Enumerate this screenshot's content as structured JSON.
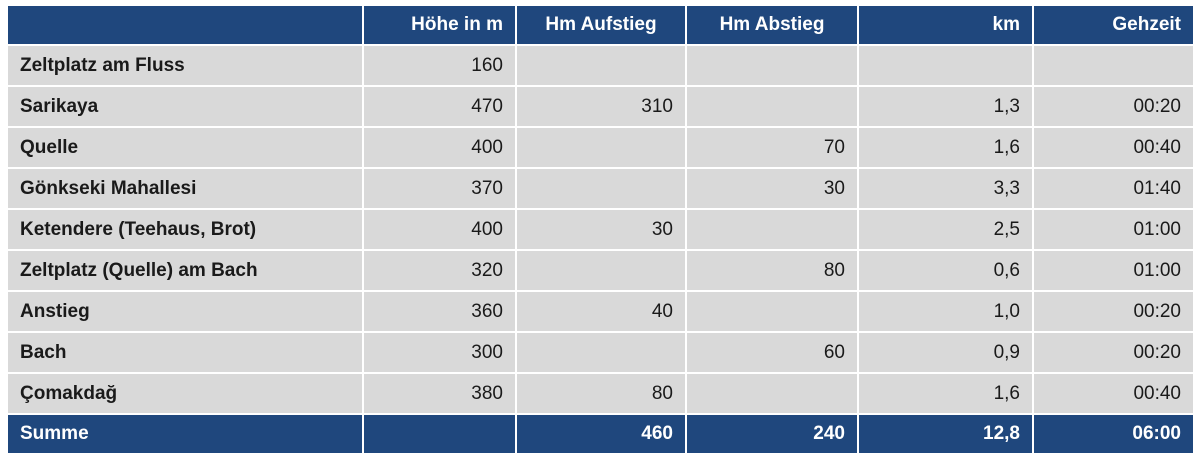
{
  "headers": [
    "",
    "Höhe in m",
    "Hm Aufstieg",
    "Hm Abstieg",
    "km",
    "Gehzeit"
  ],
  "rows": [
    {
      "name": "Zeltplatz am Fluss",
      "hoehe": "160",
      "auf": "",
      "ab": "",
      "km": "",
      "zeit": ""
    },
    {
      "name": "Sarikaya",
      "hoehe": "470",
      "auf": "310",
      "ab": "",
      "km": "1,3",
      "zeit": "00:20"
    },
    {
      "name": "Quelle",
      "hoehe": "400",
      "auf": "",
      "ab": "70",
      "km": "1,6",
      "zeit": "00:40"
    },
    {
      "name": "Gönkseki Mahallesi",
      "hoehe": "370",
      "auf": "",
      "ab": "30",
      "km": "3,3",
      "zeit": "01:40"
    },
    {
      "name": "Ketendere (Teehaus, Brot)",
      "hoehe": "400",
      "auf": "30",
      "ab": "",
      "km": "2,5",
      "zeit": "01:00"
    },
    {
      "name": "Zeltplatz (Quelle) am Bach",
      "hoehe": "320",
      "auf": "",
      "ab": "80",
      "km": "0,6",
      "zeit": "01:00"
    },
    {
      "name": "Anstieg",
      "hoehe": "360",
      "auf": "40",
      "ab": "",
      "km": "1,0",
      "zeit": "00:20"
    },
    {
      "name": "Bach",
      "hoehe": "300",
      "auf": "",
      "ab": "60",
      "km": "0,9",
      "zeit": "00:20"
    },
    {
      "name": "Çomakdağ",
      "hoehe": "380",
      "auf": "80",
      "ab": "",
      "km": "1,6",
      "zeit": "00:40"
    }
  ],
  "summary": {
    "name": "Summe",
    "hoehe": "",
    "auf": "460",
    "ab": "240",
    "km": "12,8",
    "zeit": "06:00"
  }
}
